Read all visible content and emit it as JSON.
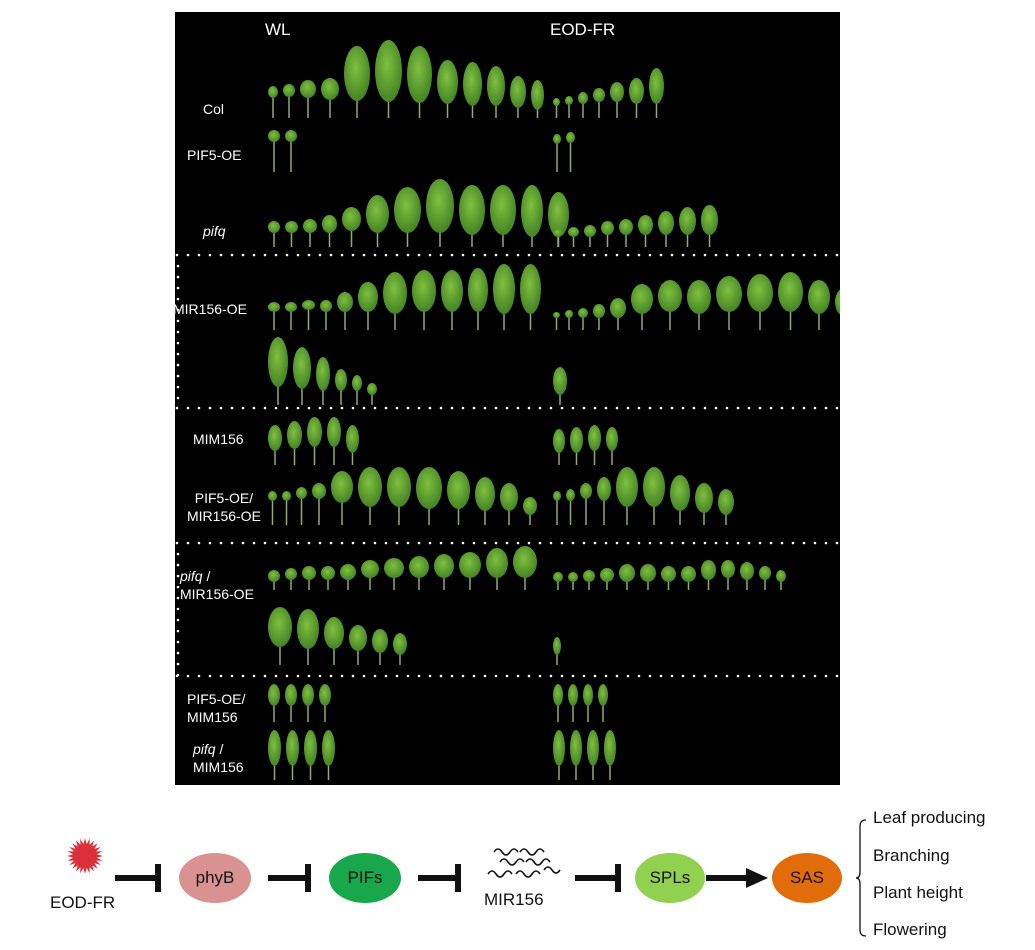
{
  "figure": {
    "columns": [
      "WL",
      "EOD-FR"
    ],
    "rows": [
      {
        "label": "Col",
        "italic": "",
        "wl_leaves": 12,
        "eod_leaves": 7
      },
      {
        "label": "PIF5-OE",
        "italic": "",
        "wl_leaves": 2,
        "eod_leaves": 2
      },
      {
        "label": "",
        "italic": "pifq",
        "wl_leaves": 12,
        "eod_leaves": 9
      },
      {
        "label": "MIR156-OE",
        "italic": "",
        "wl_leaves": 18,
        "eod_leaves": 15
      },
      {
        "label": "MIM156",
        "italic": "",
        "wl_leaves": 5,
        "eod_leaves": 4
      },
      {
        "label": "PIF5-OE/",
        "label2": "MIR156-OE",
        "italic": "",
        "wl_leaves": 12,
        "eod_leaves": 9
      },
      {
        "label": " /",
        "label2": "MIR156-OE",
        "italic": "pifq",
        "wl_leaves": 18,
        "eod_leaves": 14
      },
      {
        "label": "PIF5-OE/",
        "label2": "MIM156",
        "italic": "",
        "wl_leaves": 4,
        "eod_leaves": 4
      },
      {
        "label": " /",
        "label2": "MIM156",
        "italic": "pifq",
        "wl_leaves": 4,
        "eod_leaves": 4
      }
    ]
  },
  "pathway": {
    "signal": "EOD-FR",
    "nodes": [
      {
        "label": "phyB",
        "color": "#d99191"
      },
      {
        "label": "PIFs",
        "color": "#18a84b"
      },
      {
        "label": "MIR156",
        "color": ""
      },
      {
        "label": "SPLs",
        "color": "#92d050"
      },
      {
        "label": "SAS",
        "color": "#e36c0a"
      }
    ],
    "outputs": [
      "Leaf producing",
      "Branching",
      "Plant height",
      "Flowering"
    ],
    "signal_color": "#d9303a"
  }
}
